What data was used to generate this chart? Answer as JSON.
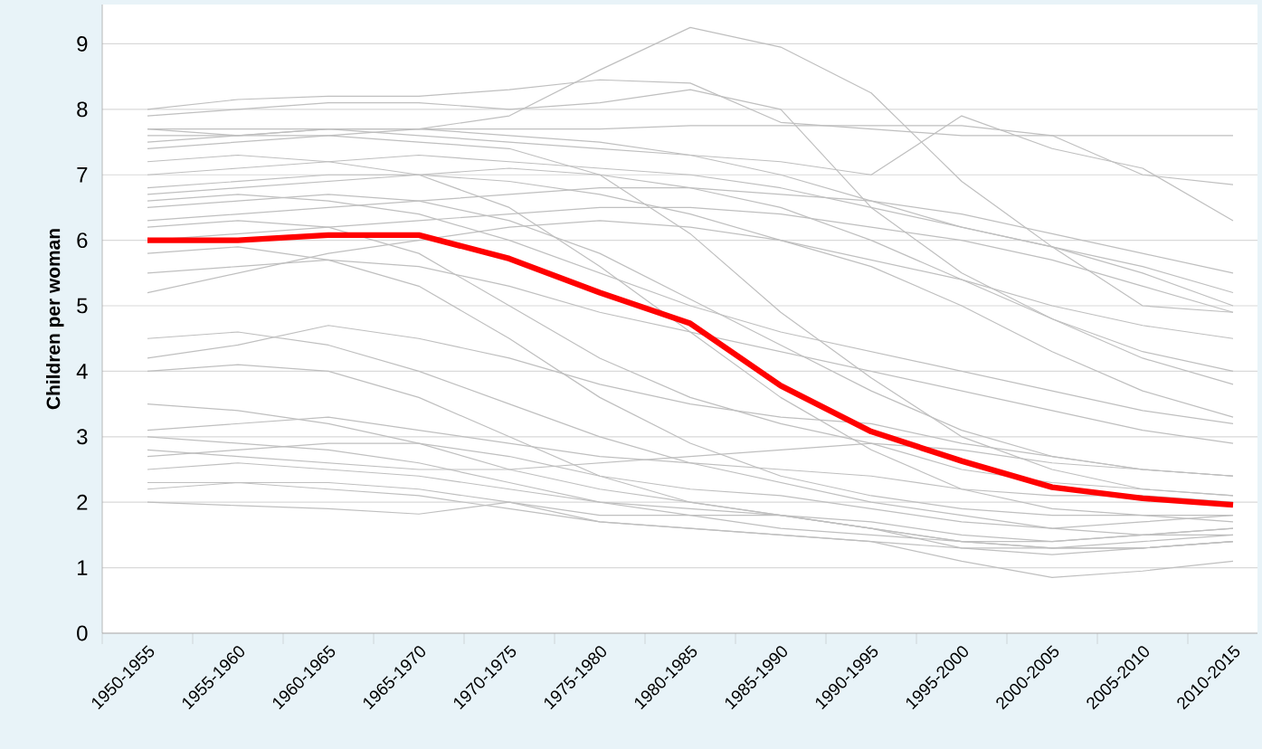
{
  "chart_data": {
    "type": "line",
    "ylabel": "Children per woman",
    "categories": [
      "1950-1955",
      "1955-1960",
      "1960-1965",
      "1965-1970",
      "1970-1975",
      "1975-1980",
      "1980-1985",
      "1985-1990",
      "1990-1995",
      "1995-2000",
      "2000-2005",
      "2005-2010",
      "2010-2015"
    ],
    "ylim": [
      0,
      9.6
    ],
    "yticks": [
      0,
      1,
      2,
      3,
      4,
      5,
      6,
      7,
      8,
      9
    ],
    "grid": "y",
    "marker": "none",
    "line_style": "solid",
    "series": [
      {
        "color": "#bfbfbf",
        "values": [
          8.0,
          8.15,
          8.2,
          8.2,
          8.3,
          8.45,
          8.4,
          7.8,
          7.7,
          7.6,
          7.6,
          7.6,
          7.6
        ]
      },
      {
        "color": "#bfbfbf",
        "values": [
          7.7,
          7.6,
          7.7,
          7.7,
          7.9,
          8.6,
          9.25,
          8.95,
          8.25,
          6.9,
          5.9,
          5.0,
          4.9
        ]
      },
      {
        "color": "#bfbfbf",
        "values": [
          7.9,
          8.0,
          8.1,
          8.1,
          8.0,
          8.1,
          8.3,
          8.0,
          6.5,
          5.5,
          4.8,
          4.3,
          4.0
        ]
      },
      {
        "color": "#bfbfbf",
        "values": [
          7.5,
          7.6,
          7.7,
          7.6,
          7.5,
          7.4,
          7.3,
          7.2,
          7.0,
          7.9,
          7.4,
          7.1,
          6.3
        ]
      },
      {
        "color": "#bfbfbf",
        "values": [
          7.0,
          7.1,
          7.2,
          7.3,
          7.2,
          7.1,
          7.0,
          6.8,
          6.5,
          6.2,
          5.9,
          5.5,
          5.0
        ]
      },
      {
        "color": "#bfbfbf",
        "values": [
          6.8,
          6.9,
          7.0,
          7.0,
          6.9,
          6.7,
          6.4,
          6.0,
          5.6,
          5.0,
          4.3,
          3.7,
          3.3
        ]
      },
      {
        "color": "#bfbfbf",
        "values": [
          6.5,
          6.6,
          6.7,
          6.6,
          6.3,
          5.8,
          5.1,
          4.4,
          3.7,
          3.1,
          2.7,
          2.5,
          2.4
        ]
      },
      {
        "color": "#bfbfbf",
        "values": [
          6.2,
          6.3,
          6.2,
          5.8,
          5.0,
          4.2,
          3.6,
          3.2,
          2.9,
          2.5,
          2.3,
          2.2,
          2.1
        ]
      },
      {
        "color": "#bfbfbf",
        "values": [
          5.8,
          5.9,
          5.7,
          5.3,
          4.5,
          3.6,
          2.9,
          2.4,
          2.1,
          1.9,
          1.8,
          1.8,
          1.7
        ]
      },
      {
        "color": "#bfbfbf",
        "values": [
          7.2,
          7.3,
          7.2,
          7.0,
          6.5,
          5.6,
          4.6,
          3.6,
          2.8,
          2.2,
          1.9,
          1.8,
          1.8
        ]
      },
      {
        "color": "#bfbfbf",
        "values": [
          6.7,
          6.8,
          6.9,
          7.0,
          7.1,
          7.0,
          6.8,
          6.5,
          6.0,
          5.4,
          4.8,
          4.2,
          3.8
        ]
      },
      {
        "color": "#bfbfbf",
        "values": [
          5.2,
          5.5,
          5.8,
          6.0,
          6.2,
          6.3,
          6.2,
          6.0,
          5.7,
          5.4,
          5.0,
          4.7,
          4.5
        ]
      },
      {
        "color": "#bfbfbf",
        "values": [
          4.5,
          4.6,
          4.4,
          4.0,
          3.5,
          3.0,
          2.6,
          2.3,
          2.0,
          1.8,
          1.6,
          1.5,
          1.5
        ]
      },
      {
        "color": "#bfbfbf",
        "values": [
          4.0,
          4.1,
          4.0,
          3.6,
          3.0,
          2.4,
          2.0,
          1.8,
          1.6,
          1.4,
          1.3,
          1.3,
          1.4
        ]
      },
      {
        "color": "#bfbfbf",
        "values": [
          3.5,
          3.4,
          3.2,
          2.9,
          2.5,
          2.2,
          2.0,
          1.8,
          1.6,
          1.4,
          1.3,
          1.3,
          1.4
        ]
      },
      {
        "color": "#bfbfbf",
        "values": [
          3.0,
          2.9,
          2.8,
          2.6,
          2.3,
          2.0,
          1.9,
          1.8,
          1.7,
          1.5,
          1.4,
          1.5,
          1.6
        ]
      },
      {
        "color": "#bfbfbf",
        "values": [
          2.5,
          2.6,
          2.5,
          2.4,
          2.2,
          2.0,
          1.8,
          1.6,
          1.5,
          1.4,
          1.4,
          1.5,
          1.6
        ]
      },
      {
        "color": "#bfbfbf",
        "values": [
          2.2,
          2.3,
          2.2,
          2.1,
          1.9,
          1.7,
          1.6,
          1.5,
          1.4,
          1.3,
          1.3,
          1.4,
          1.5
        ]
      },
      {
        "color": "#bfbfbf",
        "values": [
          2.0,
          1.95,
          1.9,
          1.82,
          2.0,
          1.7,
          1.6,
          1.5,
          1.4,
          1.1,
          0.85,
          0.95,
          1.1
        ]
      },
      {
        "color": "#bfbfbf",
        "values": [
          2.3,
          2.3,
          2.3,
          2.2,
          2.0,
          1.8,
          1.8,
          1.8,
          1.6,
          1.3,
          1.2,
          1.3,
          1.4
        ]
      },
      {
        "color": "#bfbfbf",
        "values": [
          2.7,
          2.8,
          2.9,
          2.9,
          2.7,
          2.4,
          2.2,
          2.1,
          1.9,
          1.7,
          1.6,
          1.7,
          1.8
        ]
      },
      {
        "color": "#bfbfbf",
        "values": [
          3.1,
          3.2,
          3.3,
          3.1,
          2.9,
          2.7,
          2.6,
          2.5,
          2.4,
          2.2,
          2.1,
          2.1,
          2.0
        ]
      },
      {
        "color": "#bfbfbf",
        "values": [
          6.0,
          6.1,
          6.2,
          6.3,
          6.4,
          6.5,
          6.5,
          6.4,
          6.2,
          6.0,
          5.7,
          5.3,
          4.9
        ]
      },
      {
        "color": "#bfbfbf",
        "values": [
          7.4,
          7.5,
          7.6,
          7.7,
          7.6,
          7.5,
          7.3,
          7.0,
          6.6,
          6.2,
          5.9,
          5.6,
          5.2
        ]
      },
      {
        "color": "#bfbfbf",
        "values": [
          6.6,
          6.7,
          6.6,
          6.4,
          6.0,
          5.5,
          5.0,
          4.6,
          4.3,
          4.0,
          3.7,
          3.4,
          3.2
        ]
      },
      {
        "color": "#bfbfbf",
        "values": [
          5.5,
          5.6,
          5.7,
          5.6,
          5.3,
          4.9,
          4.6,
          4.3,
          4.0,
          3.7,
          3.4,
          3.1,
          2.9
        ]
      },
      {
        "color": "#bfbfbf",
        "values": [
          4.2,
          4.4,
          4.7,
          4.5,
          4.2,
          3.8,
          3.5,
          3.3,
          3.2,
          2.9,
          2.7,
          2.5,
          2.4
        ]
      },
      {
        "color": "#bfbfbf",
        "values": [
          2.8,
          2.7,
          2.6,
          2.5,
          2.5,
          2.6,
          2.7,
          2.8,
          2.9,
          2.8,
          2.6,
          2.5,
          2.4
        ]
      },
      {
        "color": "#bfbfbf",
        "values": [
          7.6,
          7.6,
          7.6,
          7.5,
          7.4,
          7.0,
          6.1,
          4.9,
          3.9,
          3.0,
          2.5,
          2.2,
          2.1
        ]
      },
      {
        "color": "#bfbfbf",
        "values": [
          6.3,
          6.4,
          6.5,
          6.6,
          6.7,
          6.8,
          6.8,
          6.7,
          6.6,
          6.4,
          6.1,
          5.8,
          5.5
        ]
      },
      {
        "color": "#bfbfbf",
        "values": [
          7.7,
          7.7,
          7.7,
          7.7,
          7.7,
          7.7,
          7.75,
          7.75,
          7.75,
          7.75,
          7.6,
          7.0,
          6.85
        ]
      },
      {
        "color": "#ff0000",
        "values": [
          6.0,
          6.0,
          6.08,
          6.08,
          5.72,
          5.2,
          4.73,
          3.78,
          3.08,
          2.63,
          2.23,
          2.06,
          1.96
        ]
      }
    ]
  }
}
